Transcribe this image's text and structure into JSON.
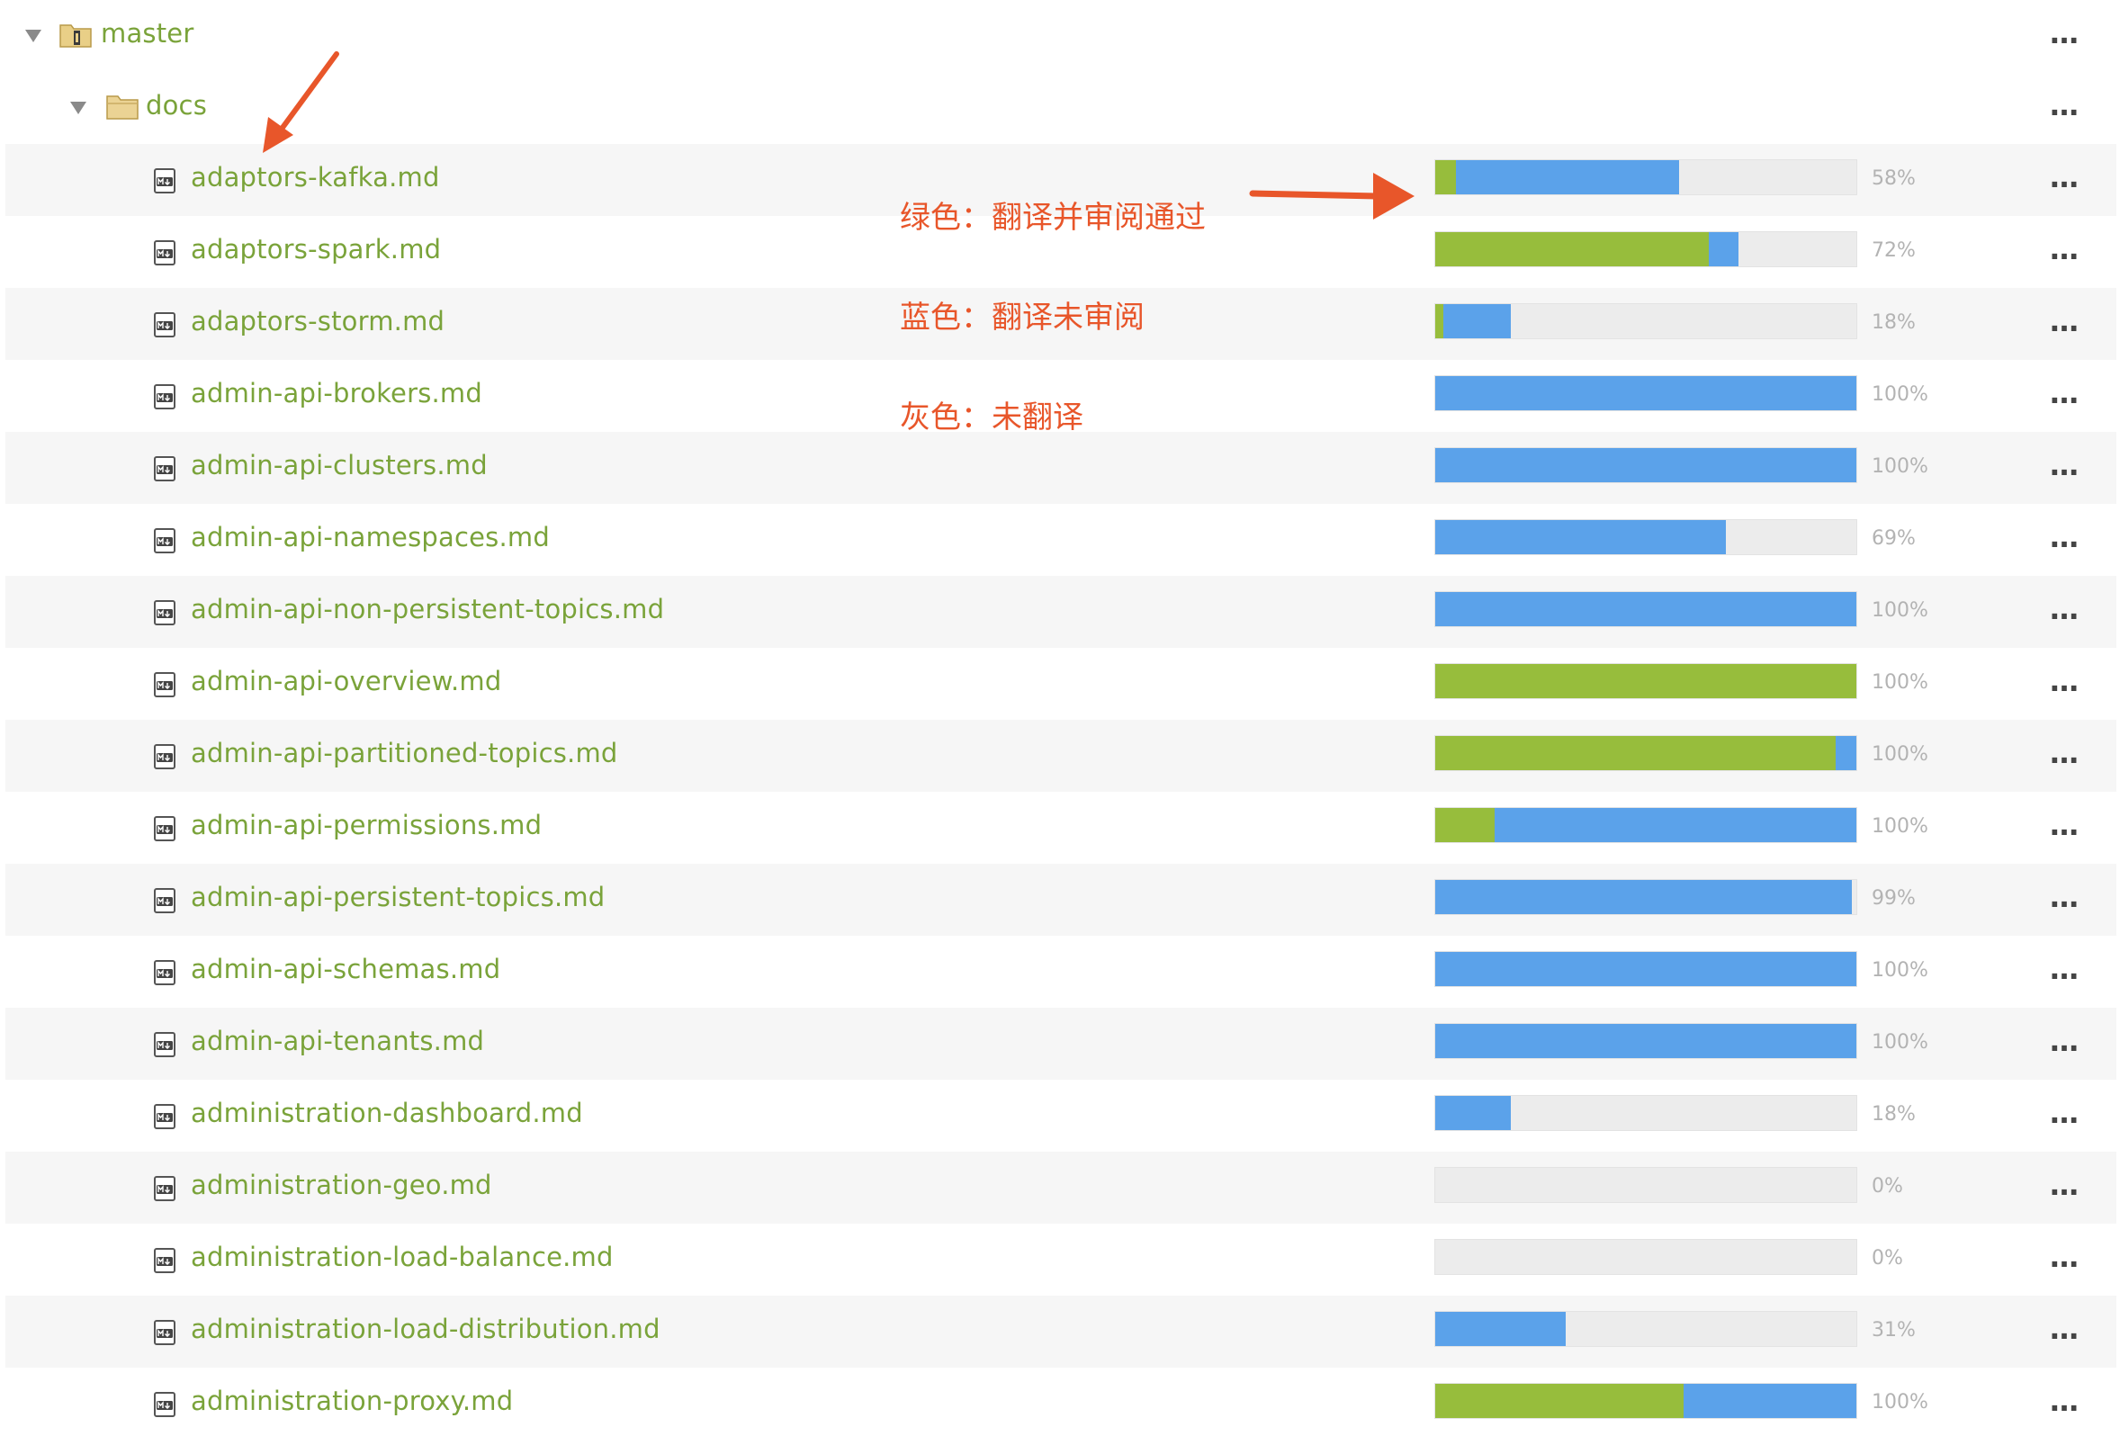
{
  "root": {
    "label": "master"
  },
  "folder": {
    "label": "docs"
  },
  "annotation": {
    "lines": [
      "绿色：翻译并审阅通过",
      "蓝色：翻译未审阅",
      "灰色：未翻译"
    ]
  },
  "colors": {
    "reviewed": "#97bd3c",
    "translated": "#5ba2ea",
    "untranslated": "#ececec",
    "link": "#7aa33a",
    "annotation": "#e8562a"
  },
  "more_icon": "…",
  "files": [
    {
      "name": "adaptors-kafka.md",
      "green": 0.05,
      "blue": 0.53,
      "percent": "58%"
    },
    {
      "name": "adaptors-spark.md",
      "green": 0.65,
      "blue": 0.07,
      "percent": "72%"
    },
    {
      "name": "adaptors-storm.md",
      "green": 0.02,
      "blue": 0.16,
      "percent": "18%"
    },
    {
      "name": "admin-api-brokers.md",
      "green": 0.0,
      "blue": 1.0,
      "percent": "100%"
    },
    {
      "name": "admin-api-clusters.md",
      "green": 0.0,
      "blue": 1.0,
      "percent": "100%"
    },
    {
      "name": "admin-api-namespaces.md",
      "green": 0.0,
      "blue": 0.69,
      "percent": "69%"
    },
    {
      "name": "admin-api-non-persistent-topics.md",
      "green": 0.0,
      "blue": 1.0,
      "percent": "100%"
    },
    {
      "name": "admin-api-overview.md",
      "green": 1.0,
      "blue": 0.0,
      "percent": "100%"
    },
    {
      "name": "admin-api-partitioned-topics.md",
      "green": 0.95,
      "blue": 0.05,
      "percent": "100%"
    },
    {
      "name": "admin-api-permissions.md",
      "green": 0.14,
      "blue": 0.86,
      "percent": "100%"
    },
    {
      "name": "admin-api-persistent-topics.md",
      "green": 0.0,
      "blue": 0.99,
      "percent": "99%"
    },
    {
      "name": "admin-api-schemas.md",
      "green": 0.0,
      "blue": 1.0,
      "percent": "100%"
    },
    {
      "name": "admin-api-tenants.md",
      "green": 0.0,
      "blue": 1.0,
      "percent": "100%"
    },
    {
      "name": "administration-dashboard.md",
      "green": 0.0,
      "blue": 0.18,
      "percent": "18%"
    },
    {
      "name": "administration-geo.md",
      "green": 0.0,
      "blue": 0.0,
      "percent": "0%"
    },
    {
      "name": "administration-load-balance.md",
      "green": 0.0,
      "blue": 0.0,
      "percent": "0%"
    },
    {
      "name": "administration-load-distribution.md",
      "green": 0.0,
      "blue": 0.31,
      "percent": "31%"
    },
    {
      "name": "administration-proxy.md",
      "green": 0.59,
      "blue": 0.41,
      "percent": "100%"
    }
  ]
}
